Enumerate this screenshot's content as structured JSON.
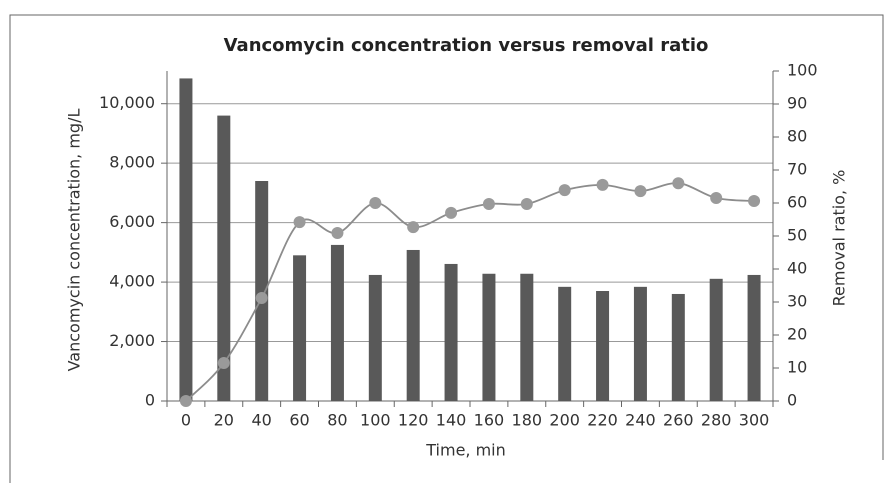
{
  "chart_data": {
    "type": "bar",
    "title": "Vancomycin concentration versus removal ratio",
    "x_label": "Time, min",
    "y_label": "Vancomycin concentration, mg/L",
    "y2_label": "Removal ratio, %",
    "categories": [
      "0",
      "20",
      "40",
      "60",
      "80",
      "100",
      "120",
      "140",
      "160",
      "180",
      "200",
      "220",
      "240",
      "260",
      "280",
      "300"
    ],
    "series": [
      {
        "name": "Vancomycin concentration",
        "type": "bar",
        "color": "#595959",
        "values": [
          10850,
          9600,
          7400,
          4900,
          5250,
          4240,
          5080,
          4610,
          4280,
          4280,
          3840,
          3700,
          3840,
          3600,
          4110,
          4240
        ]
      },
      {
        "name": "Removal ratio",
        "type": "line",
        "axis": "y2",
        "color": "#8c8c8c",
        "marker_color": "#9a9a9a",
        "values": [
          0,
          11.5,
          31.2,
          54.2,
          50.9,
          60,
          52.7,
          57,
          59.7,
          59.7,
          63.9,
          65.5,
          63.6,
          66,
          61.5,
          60.6
        ]
      }
    ],
    "ylim": [
      0,
      11100
    ],
    "yticks": [
      0,
      {
        "value": 2000,
        "label": "2,000"
      },
      {
        "value": 4000,
        "label": "4,000"
      },
      {
        "value": 6000,
        "label": "6,000"
      },
      {
        "value": 8000,
        "label": "8,000"
      },
      {
        "value": 10000,
        "label": "10,000"
      }
    ],
    "y2lim": [
      0,
      100
    ],
    "y2ticks": [
      0,
      10,
      20,
      30,
      40,
      50,
      60,
      70,
      80,
      90,
      100
    ],
    "grid": true
  }
}
